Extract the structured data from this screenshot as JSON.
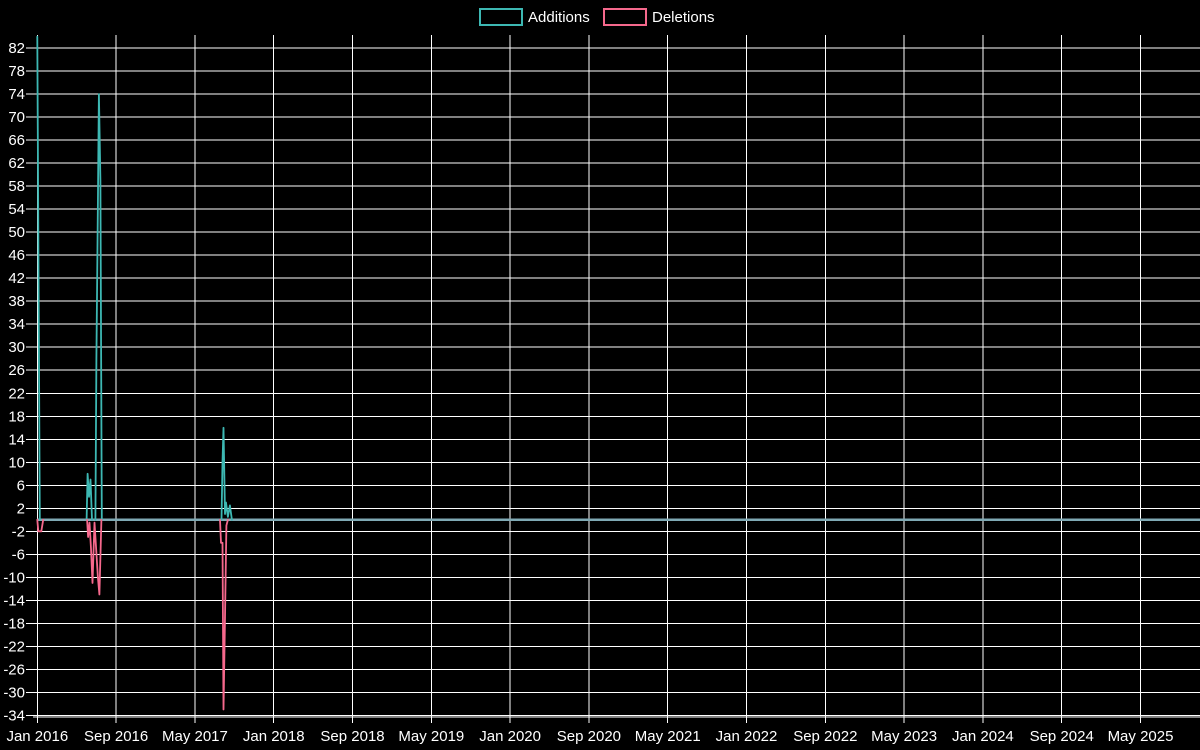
{
  "page": {
    "background": "#000000"
  },
  "chart_data": {
    "type": "line",
    "title": "",
    "x_unit": "months since Jan 2016 (weekly data points)",
    "legend": {
      "position": "top-center",
      "entries": [
        {
          "name": "additions",
          "label": "Additions",
          "color": "#3db8b3"
        },
        {
          "name": "deletions",
          "label": "Deletions",
          "color": "#f5688c"
        }
      ]
    },
    "x_axis": {
      "range_months": [
        -0.44,
        118.04
      ],
      "ticks": [
        {
          "m": 0,
          "label": "Jan 2016"
        },
        {
          "m": 8,
          "label": "Sep 2016"
        },
        {
          "m": 16,
          "label": "May 2017"
        },
        {
          "m": 24,
          "label": "Jan 2018"
        },
        {
          "m": 32,
          "label": "Sep 2018"
        },
        {
          "m": 40,
          "label": "May 2019"
        },
        {
          "m": 48,
          "label": "Jan 2020"
        },
        {
          "m": 56,
          "label": "Sep 2020"
        },
        {
          "m": 64,
          "label": "May 2021"
        },
        {
          "m": 72,
          "label": "Jan 2022"
        },
        {
          "m": 80,
          "label": "Sep 2022"
        },
        {
          "m": 88,
          "label": "May 2023"
        },
        {
          "m": 96,
          "label": "Jan 2024"
        },
        {
          "m": 104,
          "label": "Sep 2024"
        },
        {
          "m": 112,
          "label": "May 2025"
        }
      ]
    },
    "y_axis": {
      "range": [
        -34.3,
        84.3
      ],
      "tick_values": [
        82,
        78,
        74,
        70,
        66,
        62,
        58,
        54,
        50,
        46,
        42,
        38,
        34,
        30,
        26,
        22,
        18,
        14,
        10,
        6,
        2,
        -2,
        -6,
        -10,
        -14,
        -18,
        -22,
        -26,
        -30,
        -34
      ]
    },
    "grid": true,
    "grid_color": "#ffffff",
    "zero_line_color": "#7fa9b4",
    "text_color": "#ffffff",
    "background_color": "#000000",
    "series": [
      {
        "name": "Additions",
        "color": "#3db8b3",
        "points": [
          [
            0,
            84
          ],
          [
            0.25,
            0
          ],
          [
            5.0,
            0
          ],
          [
            5.1,
            8
          ],
          [
            5.25,
            4
          ],
          [
            5.4,
            7
          ],
          [
            5.55,
            0
          ],
          [
            5.9,
            0
          ],
          [
            6.0,
            28
          ],
          [
            6.15,
            55
          ],
          [
            6.25,
            74
          ],
          [
            6.4,
            59
          ],
          [
            6.55,
            0
          ],
          [
            18.7,
            0
          ],
          [
            18.8,
            10
          ],
          [
            18.9,
            16
          ],
          [
            19.05,
            1
          ],
          [
            19.15,
            3
          ],
          [
            19.35,
            0.5
          ],
          [
            19.55,
            2.5
          ],
          [
            19.75,
            0
          ],
          [
            118.04,
            0
          ]
        ]
      },
      {
        "name": "Deletions",
        "color": "#f5688c",
        "points": [
          [
            0,
            0
          ],
          [
            0.1,
            -2
          ],
          [
            0.4,
            -2
          ],
          [
            0.6,
            0
          ],
          [
            5.05,
            0
          ],
          [
            5.15,
            -3
          ],
          [
            5.3,
            -0.5
          ],
          [
            5.45,
            -5
          ],
          [
            5.6,
            -11
          ],
          [
            5.8,
            -0.5
          ],
          [
            6.15,
            -10
          ],
          [
            6.3,
            -13
          ],
          [
            6.5,
            0
          ],
          [
            18.55,
            0
          ],
          [
            18.65,
            -4
          ],
          [
            18.8,
            -4
          ],
          [
            18.9,
            -33
          ],
          [
            19.05,
            -17
          ],
          [
            19.2,
            -1
          ],
          [
            19.35,
            0
          ],
          [
            118.04,
            0
          ]
        ]
      }
    ]
  }
}
